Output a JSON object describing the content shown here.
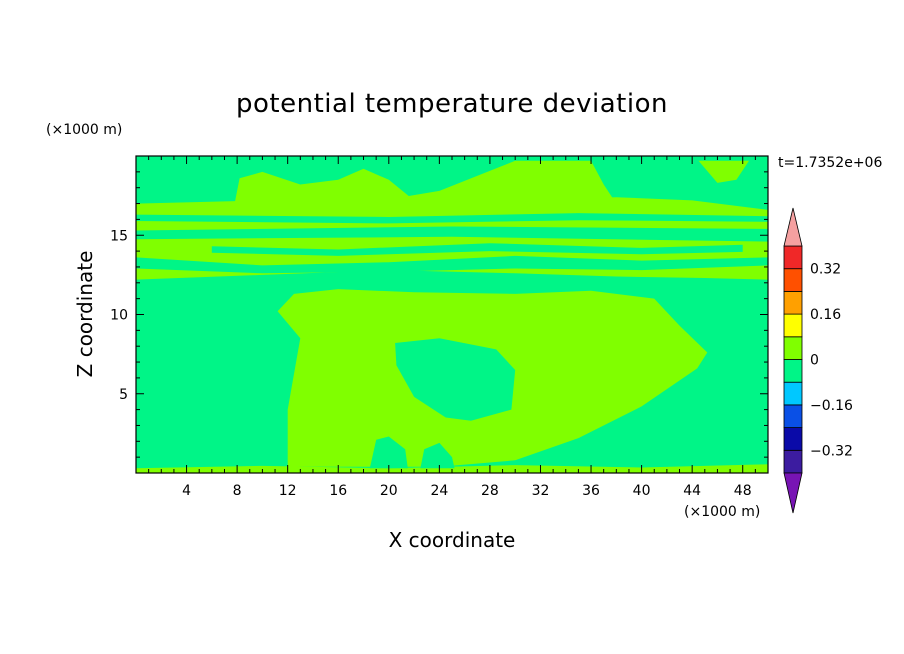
{
  "chart_data": {
    "type": "heatmap",
    "title": "potential temperature deviation",
    "xlabel": "X coordinate",
    "ylabel": "Z coordinate",
    "x_unit": "(×1000 m)",
    "y_unit": "(×1000 m)",
    "time_label": "t=1.7352e+06",
    "xlim": [
      0,
      50
    ],
    "ylim": [
      0,
      20
    ],
    "x_ticks": [
      4,
      8,
      12,
      16,
      20,
      24,
      28,
      32,
      36,
      40,
      44,
      48
    ],
    "y_ticks": [
      5,
      10,
      15
    ],
    "background_level_color": "#00f587",
    "colorbar": {
      "levels": [
        -0.4,
        -0.32,
        -0.24,
        -0.16,
        -0.08,
        0,
        0.08,
        0.16,
        0.24,
        0.32,
        0.4
      ],
      "colors": [
        "#3c1ca0",
        "#0a0aa8",
        "#0a50e6",
        "#00c8ff",
        "#00f587",
        "#80ff00",
        "#ffff00",
        "#ffa000",
        "#ff5000",
        "#f02828"
      ],
      "under_color": "#7814b4",
      "over_color": "#f5a0a0",
      "tick_values": [
        -0.32,
        -0.16,
        0,
        0.16,
        0.32
      ],
      "tick_labels": [
        "−0.32",
        "−0.16",
        "0",
        "0.16",
        "0.32"
      ]
    },
    "regions": [
      {
        "name": "central-warm-region",
        "value": 0.04,
        "color": "#80ff00",
        "points": [
          [
            12,
            0.4
          ],
          [
            12,
            4
          ],
          [
            13,
            8.5
          ],
          [
            11.2,
            10.2
          ],
          [
            12.5,
            11.3
          ],
          [
            16,
            11.6
          ],
          [
            22,
            11.4
          ],
          [
            30,
            11.3
          ],
          [
            36,
            11.5
          ],
          [
            41,
            11
          ],
          [
            43,
            9.3
          ],
          [
            45.2,
            7.6
          ],
          [
            44.4,
            6.6
          ],
          [
            40,
            4.2
          ],
          [
            35,
            2.2
          ],
          [
            30,
            0.8
          ],
          [
            24,
            0.4
          ]
        ]
      },
      {
        "name": "central-cool-pocket",
        "value": -0.04,
        "color": "#00f587",
        "points": [
          [
            20.5,
            8.2
          ],
          [
            24,
            8.5
          ],
          [
            28.5,
            7.8
          ],
          [
            30,
            6.5
          ],
          [
            29.7,
            4
          ],
          [
            26.5,
            3.3
          ],
          [
            24.5,
            3.5
          ],
          [
            22,
            4.8
          ],
          [
            20.6,
            6.8
          ]
        ]
      },
      {
        "name": "upper-warm-band",
        "value": 0.04,
        "color": "#80ff00",
        "points": [
          [
            0,
            12.2
          ],
          [
            10,
            12.5
          ],
          [
            20,
            12.8
          ],
          [
            30,
            12.6
          ],
          [
            38,
            12.4
          ],
          [
            45,
            12.3
          ],
          [
            50,
            12.2
          ],
          [
            50,
            16.6
          ],
          [
            44,
            17.2
          ],
          [
            38,
            17.4
          ],
          [
            30,
            17.2
          ],
          [
            20,
            17.3
          ],
          [
            10,
            17.2
          ],
          [
            0,
            17
          ]
        ]
      },
      {
        "name": "top-warm-blob-1",
        "value": 0.04,
        "color": "#80ff00",
        "points": [
          [
            7.8,
            17
          ],
          [
            8.2,
            18.6
          ],
          [
            10,
            19
          ],
          [
            13,
            18.2
          ],
          [
            16,
            18.5
          ],
          [
            18,
            19.2
          ],
          [
            20,
            18.5
          ],
          [
            22,
            17.2
          ]
        ]
      },
      {
        "name": "top-warm-blob-2",
        "value": 0.04,
        "color": "#80ff00",
        "points": [
          [
            18,
            17
          ],
          [
            24,
            17.8
          ],
          [
            30,
            19.7
          ],
          [
            36,
            19.7
          ],
          [
            37,
            18.2
          ],
          [
            38,
            17
          ]
        ]
      },
      {
        "name": "upper-right-warm-patch",
        "value": 0.04,
        "color": "#80ff00",
        "points": [
          [
            44.5,
            19.7
          ],
          [
            46,
            18.3
          ],
          [
            47.5,
            18.5
          ],
          [
            48.5,
            19.7
          ]
        ]
      },
      {
        "name": "cool-streak-15",
        "value": -0.04,
        "color": "#00f587",
        "points": [
          [
            0,
            15.3
          ],
          [
            25,
            15.55
          ],
          [
            50,
            15.4
          ],
          [
            50,
            14.6
          ],
          [
            25,
            14.9
          ],
          [
            0,
            14.75
          ]
        ]
      },
      {
        "name": "cool-streak-16",
        "value": -0.04,
        "color": "#00f587",
        "points": [
          [
            0,
            16.3
          ],
          [
            20,
            16.15
          ],
          [
            35,
            16.4
          ],
          [
            50,
            16.2
          ],
          [
            50,
            15.85
          ],
          [
            35,
            15.95
          ],
          [
            20,
            15.75
          ],
          [
            0,
            15.9
          ]
        ]
      },
      {
        "name": "cool-streak-13",
        "value": -0.04,
        "color": "#00f587",
        "points": [
          [
            0,
            13.6
          ],
          [
            10,
            13.1
          ],
          [
            20,
            13.3
          ],
          [
            30,
            13.7
          ],
          [
            40,
            13.4
          ],
          [
            50,
            13.6
          ],
          [
            50,
            13.1
          ],
          [
            40,
            12.8
          ],
          [
            30,
            12.9
          ],
          [
            20,
            12.7
          ],
          [
            10,
            12.6
          ],
          [
            0,
            12.9
          ]
        ]
      },
      {
        "name": "cool-streak-14",
        "value": -0.04,
        "color": "#00f587",
        "points": [
          [
            6,
            14.3
          ],
          [
            16,
            14.1
          ],
          [
            28,
            14.5
          ],
          [
            40,
            14.2
          ],
          [
            48,
            14.4
          ],
          [
            48,
            13.95
          ],
          [
            40,
            13.8
          ],
          [
            28,
            14
          ],
          [
            16,
            13.7
          ],
          [
            6,
            13.9
          ]
        ]
      },
      {
        "name": "bottom-warm-strip",
        "value": 0.04,
        "color": "#80ff00",
        "points": [
          [
            0,
            0
          ],
          [
            50,
            0
          ],
          [
            50,
            0.55
          ],
          [
            40,
            0.35
          ],
          [
            30,
            0.5
          ],
          [
            20,
            0.3
          ],
          [
            10,
            0.45
          ],
          [
            0,
            0.3
          ]
        ]
      },
      {
        "name": "bottom-cool-bump-1",
        "value": -0.04,
        "color": "#00f587",
        "points": [
          [
            18.5,
            0.3
          ],
          [
            19,
            2.1
          ],
          [
            20,
            2.3
          ],
          [
            21.3,
            1.5
          ],
          [
            21.5,
            0.3
          ]
        ]
      },
      {
        "name": "bottom-cool-bump-2",
        "value": -0.04,
        "color": "#00f587",
        "points": [
          [
            22.5,
            0.3
          ],
          [
            22.8,
            1.5
          ],
          [
            24,
            1.9
          ],
          [
            25,
            1
          ],
          [
            25.2,
            0.3
          ]
        ]
      }
    ]
  }
}
